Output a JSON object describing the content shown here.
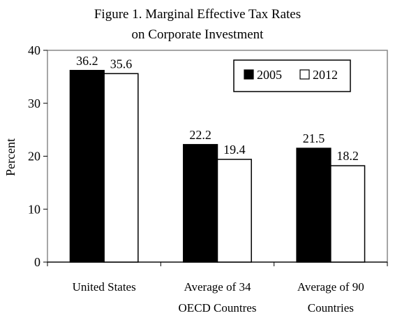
{
  "chart_data": {
    "type": "bar",
    "title_lines": [
      "Figure 1. Marginal Effective Tax Rates",
      "on Corporate Investment"
    ],
    "ylabel": "Percent",
    "ylim": [
      0,
      40
    ],
    "yticks": [
      0,
      10,
      20,
      30,
      40
    ],
    "categories": [
      [
        "United States"
      ],
      [
        "Average of 34",
        "OECD Countres"
      ],
      [
        "Average of 90",
        "Countries"
      ]
    ],
    "series": [
      {
        "name": "2005",
        "fill": "#000000",
        "values": [
          36.2,
          22.2,
          21.5
        ]
      },
      {
        "name": "2012",
        "fill": "#ffffff",
        "values": [
          35.6,
          19.4,
          18.2
        ]
      }
    ],
    "value_labels": [
      [
        "36.2",
        "22.2",
        "21.5"
      ],
      [
        "35.6",
        "19.4",
        "18.2"
      ]
    ],
    "legend_position": "top-right",
    "grid": false
  }
}
